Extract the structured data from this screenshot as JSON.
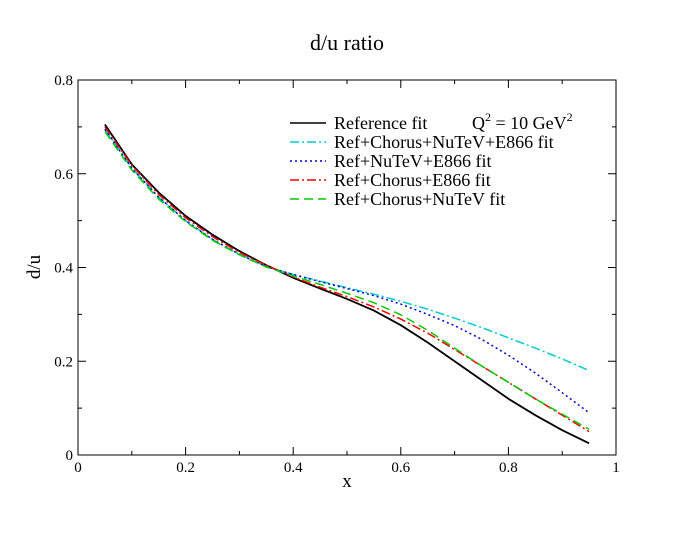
{
  "chart_data": {
    "type": "line",
    "title": "d/u ratio",
    "xlabel": "x",
    "ylabel": "d/u",
    "xlim": [
      0,
      1
    ],
    "ylim": [
      0,
      0.8
    ],
    "x_ticks": [
      "0",
      "0.2",
      "0.4",
      "0.6",
      "0.8",
      "1"
    ],
    "y_ticks": [
      "0",
      "0.2",
      "0.4",
      "0.6",
      "0.8"
    ],
    "annotation": {
      "prefix": "Q",
      "sup1": "2",
      "mid": " = 10 GeV",
      "sup2": "2"
    },
    "legend_position": "top-right",
    "grid": false,
    "x": [
      0.05,
      0.1,
      0.15,
      0.2,
      0.25,
      0.3,
      0.35,
      0.4,
      0.45,
      0.5,
      0.55,
      0.6,
      0.65,
      0.7,
      0.75,
      0.8,
      0.85,
      0.9,
      0.95
    ],
    "series": [
      {
        "name": "Reference fit",
        "color": "#000000",
        "dash": "solid",
        "values": [
          0.705,
          0.62,
          0.56,
          0.51,
          0.47,
          0.435,
          0.405,
          0.378,
          0.355,
          0.333,
          0.308,
          0.277,
          0.24,
          0.2,
          0.16,
          0.12,
          0.085,
          0.053,
          0.025
        ]
      },
      {
        "name": "Ref+Chorus+NuTeV+E866 fit",
        "color": "#00cccc",
        "dash": "dashdot",
        "values": [
          0.695,
          0.612,
          0.55,
          0.5,
          0.46,
          0.428,
          0.402,
          0.385,
          0.371,
          0.357,
          0.343,
          0.328,
          0.311,
          0.292,
          0.272,
          0.25,
          0.228,
          0.205,
          0.18
        ]
      },
      {
        "name": "Ref+NuTeV+E866 fit",
        "color": "#0000cc",
        "dash": "dotted",
        "values": [
          0.695,
          0.612,
          0.55,
          0.5,
          0.46,
          0.428,
          0.402,
          0.385,
          0.37,
          0.355,
          0.34,
          0.322,
          0.3,
          0.276,
          0.247,
          0.213,
          0.175,
          0.133,
          0.09
        ]
      },
      {
        "name": "Ref+Chorus+E866 fit",
        "color": "#ff0000",
        "dash": "dashdot",
        "values": [
          0.7,
          0.618,
          0.556,
          0.506,
          0.466,
          0.432,
          0.405,
          0.38,
          0.358,
          0.338,
          0.316,
          0.29,
          0.26,
          0.225,
          0.19,
          0.155,
          0.12,
          0.085,
          0.05
        ]
      },
      {
        "name": "Ref+Chorus+NuTeV fit",
        "color": "#00cc00",
        "dash": "dashed",
        "values": [
          0.69,
          0.608,
          0.546,
          0.498,
          0.458,
          0.427,
          0.401,
          0.382,
          0.364,
          0.345,
          0.325,
          0.299,
          0.266,
          0.228,
          0.19,
          0.155,
          0.12,
          0.087,
          0.055
        ]
      }
    ]
  }
}
